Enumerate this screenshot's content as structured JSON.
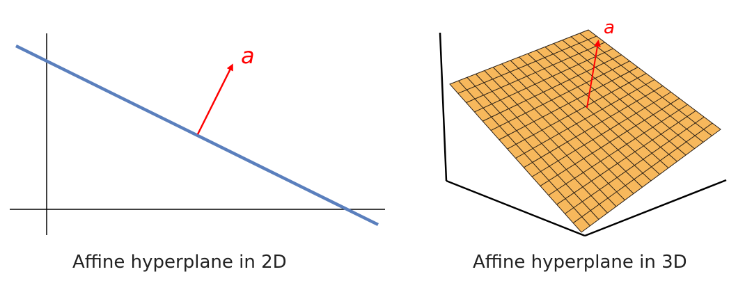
{
  "colors": {
    "hyperplane_line": "#5a7fbd",
    "normal_vector": "#ff0000",
    "surface_fill": "#f7b85c",
    "surface_grid": "#2b2016",
    "axes": "#000000"
  },
  "panel_2d": {
    "vector_label": "a",
    "caption": "Affine hyperplane in 2D"
  },
  "panel_3d": {
    "vector_label": "a",
    "caption": "Affine hyperplane in 3D",
    "grid_divisions": 16
  }
}
